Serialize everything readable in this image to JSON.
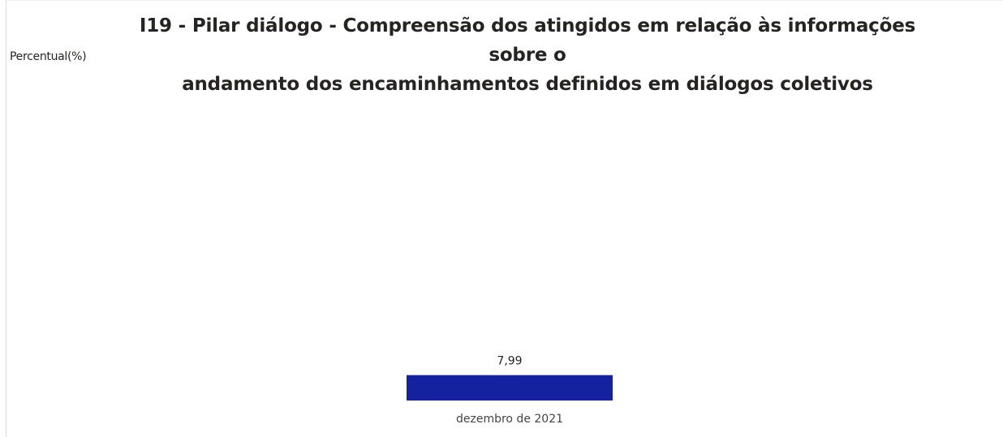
{
  "chart_data": {
    "type": "bar",
    "title": "I19 - Pilar diálogo - Compreensão dos atingidos em relação às informações sobre o andamento dos encaminhamentos definidos em diálogos coletivos",
    "title_lines": [
      "I19 - Pilar diálogo - Compreensão dos atingidos em relação às informações sobre o",
      "andamento dos encaminhamentos definidos em diálogos coletivos"
    ],
    "ylabel": "Percentual(%)",
    "xlabel": "",
    "categories": [
      "dezembro de 2021"
    ],
    "values": [
      7.99
    ],
    "value_labels": [
      "7,99"
    ],
    "ylim": [
      0,
      100
    ],
    "grid": false,
    "legend": "none",
    "bar_color": "#1522a0"
  }
}
